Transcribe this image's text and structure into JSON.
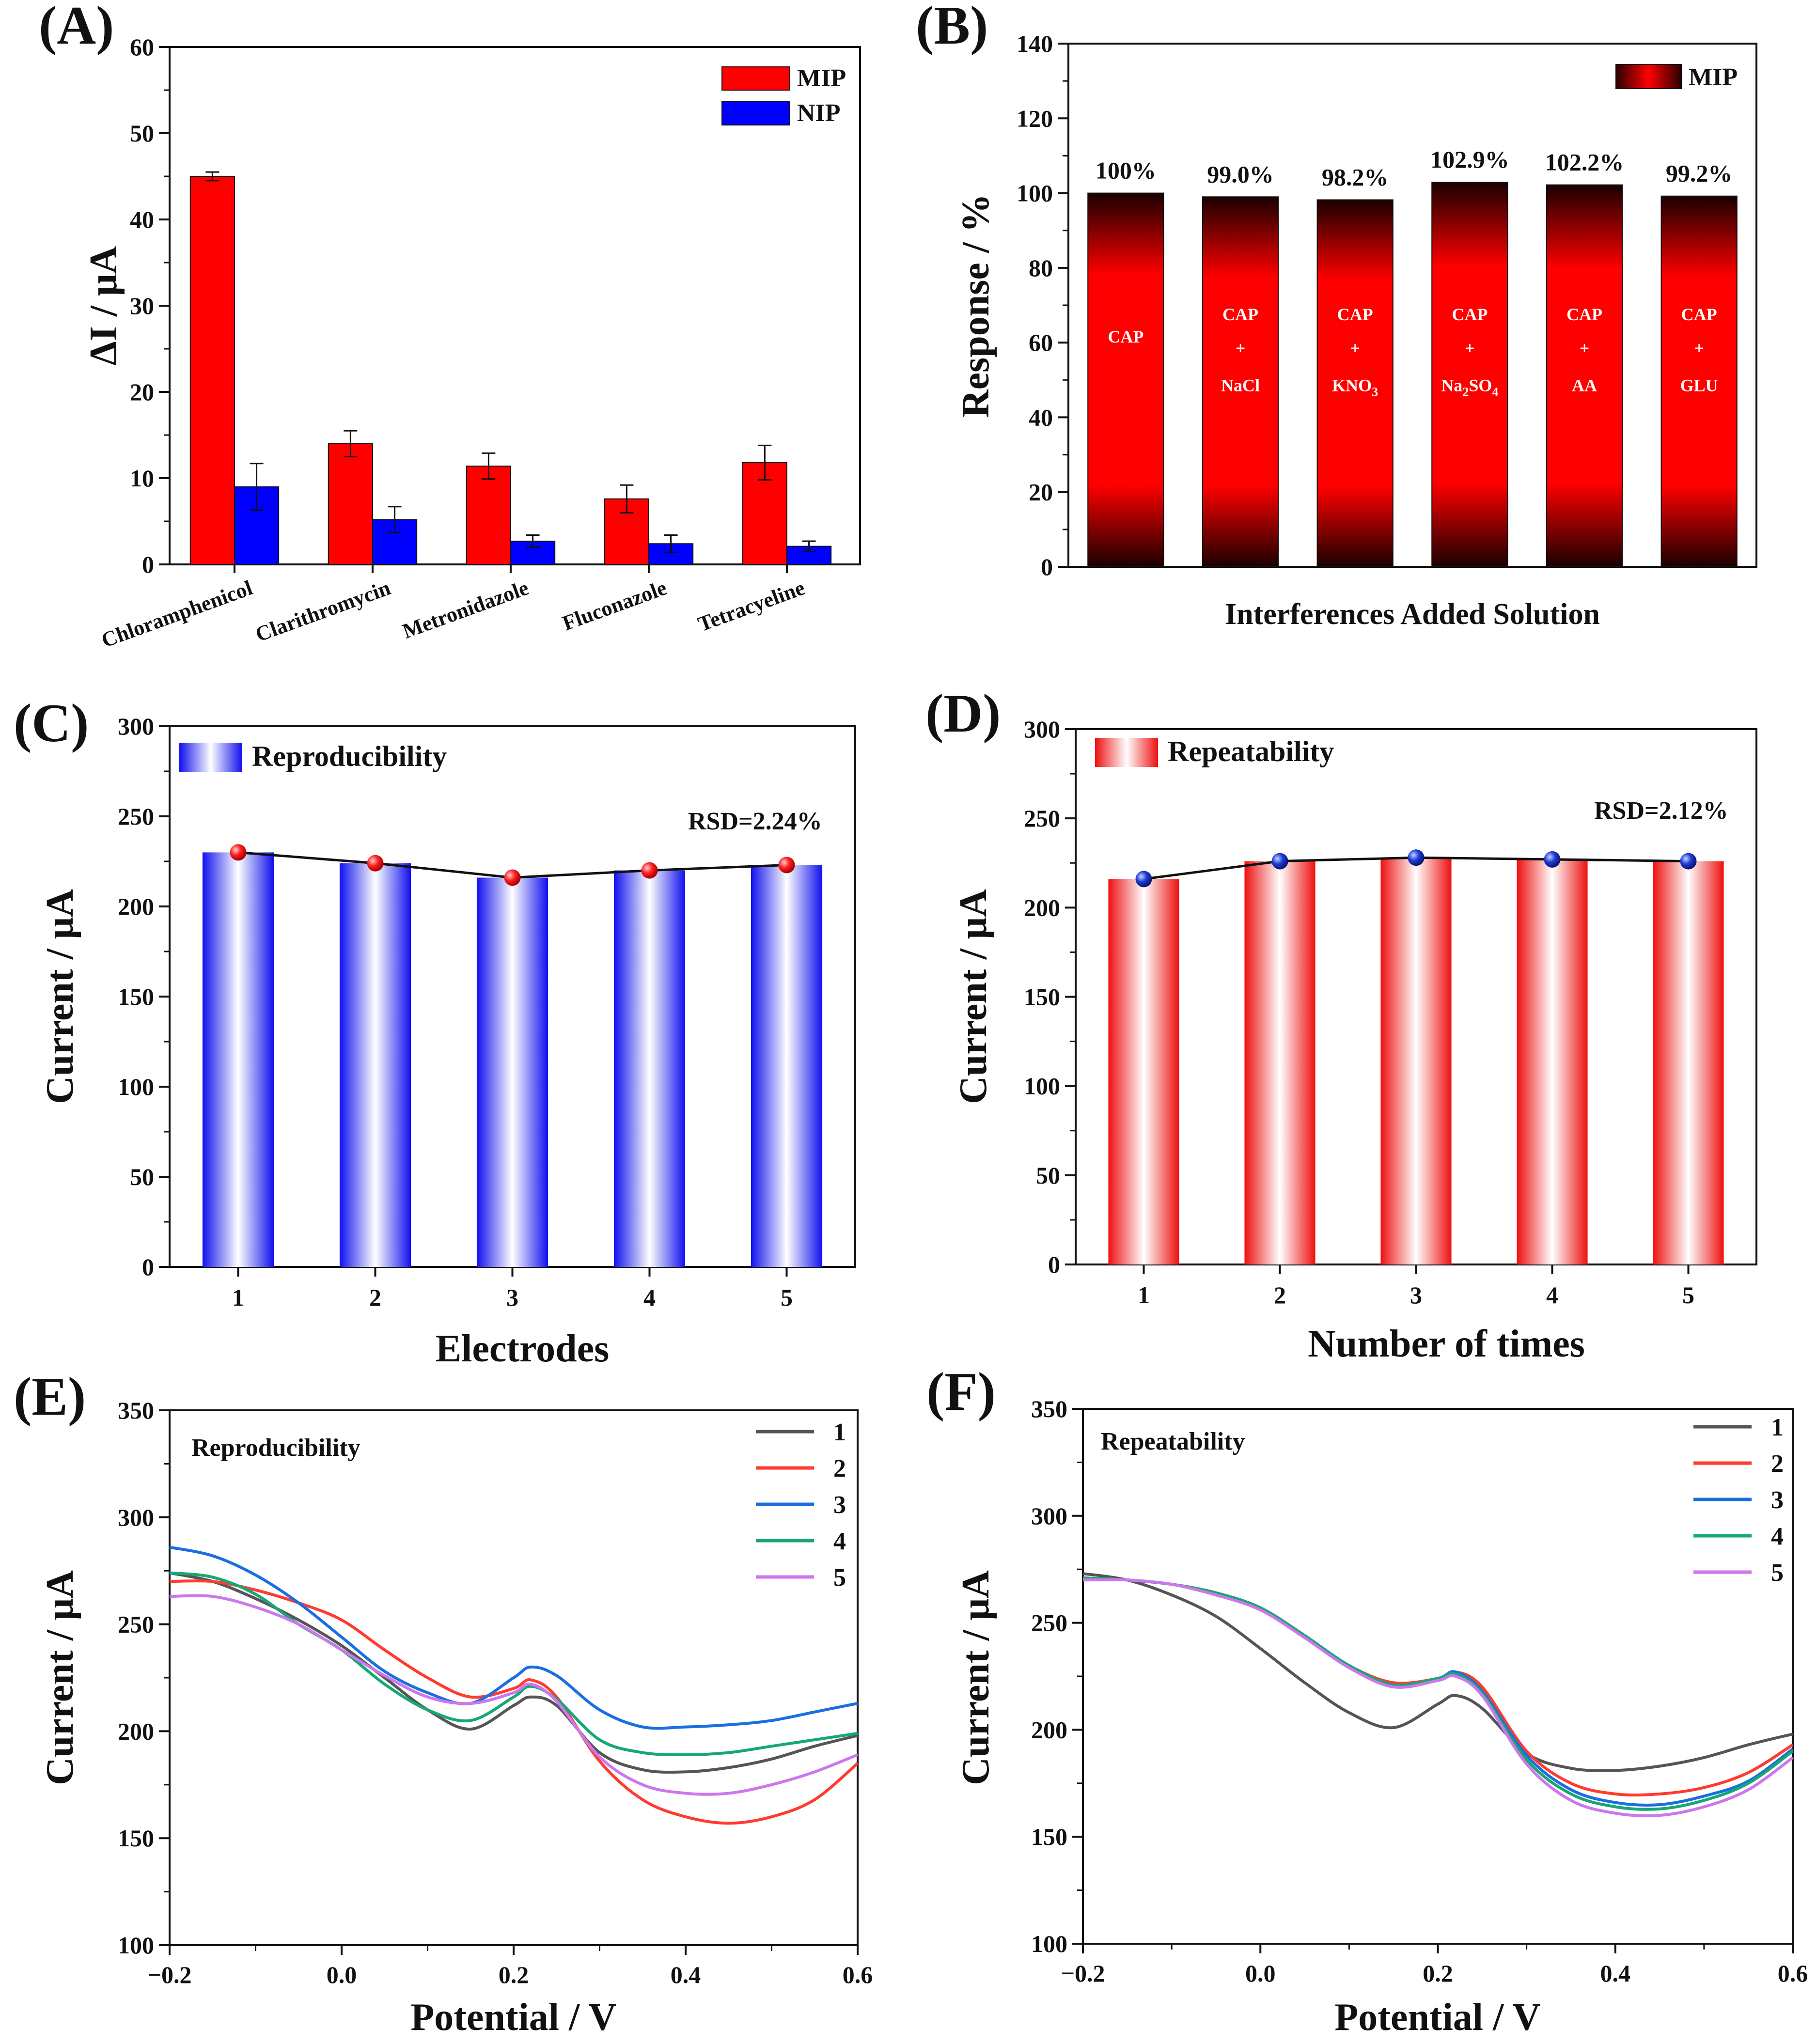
{
  "colors": {
    "mip": "#ff0000",
    "nip": "#0000ff",
    "black": "#111111",
    "e_series": [
      "#555555",
      "#ff3b30",
      "#1a6fe0",
      "#16a874",
      "#cc77ee"
    ],
    "f_series": [
      "#555555",
      "#ff3b30",
      "#1a6fe0",
      "#16a874",
      "#cc77ee"
    ]
  },
  "chart_data": [
    {
      "id": "A",
      "panel_label": "(A)",
      "type": "bar",
      "categories": [
        "Chloramphenicol",
        "Clarithromycin",
        "Metronidazole",
        "Fluconazole",
        "Tetracyeline"
      ],
      "series": [
        {
          "name": "MIP",
          "values": [
            45.0,
            14.0,
            11.4,
            7.6,
            11.8
          ],
          "errors": [
            0.5,
            1.5,
            1.5,
            1.6,
            2.0
          ]
        },
        {
          "name": "NIP",
          "values": [
            9.0,
            5.2,
            2.7,
            2.4,
            2.1
          ],
          "errors": [
            2.7,
            1.5,
            0.7,
            1.0,
            0.6
          ]
        }
      ],
      "ylabel": "ΔI / μA",
      "ylim": [
        0,
        60
      ],
      "yticks": [
        0,
        10,
        20,
        30,
        40,
        50,
        60
      ],
      "legend": "top-right"
    },
    {
      "id": "B",
      "panel_label": "(B)",
      "type": "bar",
      "categories": [
        "CAP",
        "CAP + NaCl",
        "CAP + KNO3",
        "CAP + Na2SO4",
        "CAP + AA",
        "CAP + GLU"
      ],
      "inner_labels": [
        {
          "line1": "CAP",
          "plus": "",
          "line2": "",
          "sub": "",
          "tail": ""
        },
        {
          "line1": "CAP",
          "plus": "+",
          "line2": "NaCl",
          "sub": "",
          "tail": ""
        },
        {
          "line1": "CAP",
          "plus": "+",
          "line2": "KNO",
          "sub": "3",
          "tail": ""
        },
        {
          "line1": "CAP",
          "plus": "+",
          "line2": "Na",
          "sub": "2",
          "tail": "SO",
          "sub2": "4"
        },
        {
          "line1": "CAP",
          "plus": "+",
          "line2": "AA",
          "sub": "",
          "tail": ""
        },
        {
          "line1": "CAP",
          "plus": "+",
          "line2": "GLU",
          "sub": "",
          "tail": ""
        }
      ],
      "values": [
        100,
        99.0,
        98.2,
        102.9,
        102.2,
        99.2
      ],
      "value_labels": [
        "100%",
        "99.0%",
        "98.2%",
        "102.9%",
        "102.2%",
        "99.2%"
      ],
      "series_name": "MIP",
      "xlabel": "Interferences Added Solution",
      "ylabel": "Response / %",
      "ylim": [
        0,
        140
      ],
      "yticks": [
        0,
        20,
        40,
        60,
        80,
        100,
        120,
        140
      ],
      "legend": "top-right"
    },
    {
      "id": "C",
      "panel_label": "(C)",
      "type": "bar",
      "categories": [
        "1",
        "2",
        "3",
        "4",
        "5"
      ],
      "values": [
        230,
        224,
        216,
        220,
        223
      ],
      "series_name": "Reproducibility",
      "annotation": "RSD=2.24%",
      "xlabel": "Electrodes",
      "ylabel": "Current / μA",
      "ylim": [
        0,
        300
      ],
      "yticks": [
        0,
        50,
        100,
        150,
        200,
        250,
        300
      ],
      "legend": "top-left"
    },
    {
      "id": "D",
      "panel_label": "(D)",
      "type": "bar",
      "categories": [
        "1",
        "2",
        "3",
        "4",
        "5"
      ],
      "values": [
        216,
        226,
        228,
        227,
        226
      ],
      "series_name": "Repeatability",
      "annotation": "RSD=2.12%",
      "xlabel": "Number of times",
      "ylabel": "Current / μA",
      "ylim": [
        0,
        300
      ],
      "yticks": [
        0,
        50,
        100,
        150,
        200,
        250,
        300
      ],
      "legend": "top-left"
    },
    {
      "id": "E",
      "panel_label": "(E)",
      "type": "line",
      "annotation": "Reproducibility",
      "xlabel": "Potential / V",
      "ylabel": "Current / μA",
      "xlim": [
        -0.2,
        0.6
      ],
      "ylim": [
        100,
        350
      ],
      "xticks": [
        -0.2,
        0.0,
        0.2,
        0.4,
        0.6
      ],
      "xtick_labels": [
        "−0.2",
        "0.0",
        "0.2",
        "0.4",
        "0.6"
      ],
      "yticks": [
        100,
        150,
        200,
        250,
        300,
        350
      ],
      "legend": "top-right",
      "x": [
        -0.2,
        -0.15,
        -0.1,
        -0.05,
        0.0,
        0.05,
        0.1,
        0.15,
        0.2,
        0.22,
        0.25,
        0.3,
        0.35,
        0.4,
        0.45,
        0.5,
        0.55,
        0.6
      ],
      "series": [
        {
          "name": "1",
          "values": [
            274,
            270,
            262,
            252,
            240,
            225,
            210,
            201,
            212,
            216,
            212,
            190,
            182,
            181,
            183,
            187,
            193,
            198
          ]
        },
        {
          "name": "2",
          "values": [
            270,
            270,
            266,
            260,
            252,
            238,
            225,
            216,
            220,
            224,
            216,
            186,
            168,
            160,
            157,
            160,
            168,
            185
          ]
        },
        {
          "name": "3",
          "values": [
            286,
            282,
            273,
            260,
            244,
            228,
            218,
            213,
            225,
            230,
            226,
            210,
            202,
            202,
            203,
            205,
            209,
            213
          ]
        },
        {
          "name": "4",
          "values": [
            274,
            272,
            264,
            250,
            238,
            222,
            210,
            205,
            216,
            221,
            215,
            196,
            190,
            189,
            190,
            193,
            196,
            199
          ]
        },
        {
          "name": "5",
          "values": [
            263,
            263,
            258,
            250,
            238,
            226,
            216,
            213,
            218,
            222,
            214,
            188,
            175,
            171,
            171,
            175,
            181,
            189
          ]
        }
      ]
    },
    {
      "id": "F",
      "panel_label": "(F)",
      "type": "line",
      "annotation": "Repeatability",
      "xlabel": "Potential / V",
      "ylabel": "Current / μA",
      "xlim": [
        -0.2,
        0.6
      ],
      "ylim": [
        100,
        350
      ],
      "xticks": [
        -0.2,
        0.0,
        0.2,
        0.4,
        0.6
      ],
      "xtick_labels": [
        "−0.2",
        "0.0",
        "0.2",
        "0.4",
        "0.6"
      ],
      "yticks": [
        100,
        150,
        200,
        250,
        300,
        350
      ],
      "legend": "top-right",
      "x": [
        -0.2,
        -0.15,
        -0.1,
        -0.05,
        0.0,
        0.05,
        0.1,
        0.15,
        0.2,
        0.22,
        0.25,
        0.3,
        0.35,
        0.4,
        0.45,
        0.5,
        0.55,
        0.6
      ],
      "series": [
        {
          "name": "1",
          "values": [
            273,
            270,
            263,
            253,
            238,
            222,
            208,
            201,
            212,
            216,
            210,
            189,
            182,
            181,
            183,
            187,
            193,
            198
          ]
        },
        {
          "name": "2",
          "values": [
            271,
            270,
            268,
            264,
            257,
            244,
            230,
            222,
            224,
            227,
            220,
            190,
            175,
            170,
            170,
            173,
            180,
            193
          ]
        },
        {
          "name": "3",
          "values": [
            271,
            270,
            268,
            264,
            257,
            244,
            230,
            221,
            224,
            227,
            218,
            188,
            172,
            166,
            165,
            169,
            176,
            191
          ]
        },
        {
          "name": "4",
          "values": [
            271,
            270,
            268,
            264,
            257,
            244,
            230,
            221,
            224,
            226,
            217,
            186,
            170,
            164,
            163,
            167,
            175,
            190
          ]
        },
        {
          "name": "5",
          "values": [
            270,
            270,
            268,
            263,
            256,
            243,
            229,
            220,
            223,
            225,
            216,
            184,
            167,
            161,
            160,
            164,
            172,
            187
          ]
        }
      ]
    }
  ]
}
